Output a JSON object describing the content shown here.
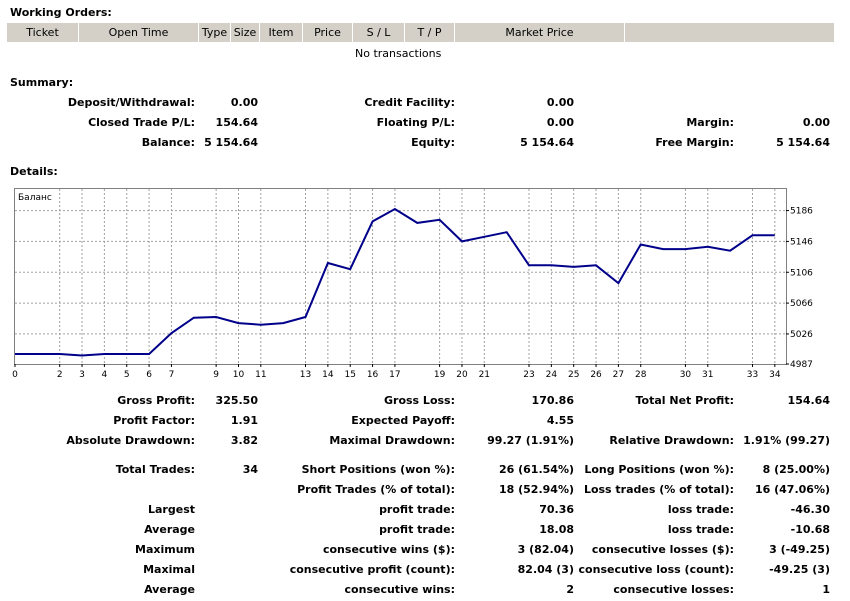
{
  "working_orders": {
    "title": "Working Orders:",
    "columns": [
      "Ticket",
      "Open Time",
      "Type",
      "Size",
      "Item",
      "Price",
      "S / L",
      "T / P",
      "Market Price",
      ""
    ],
    "empty_text": "No transactions"
  },
  "summary": {
    "title": "Summary:",
    "deposit_withdrawal": {
      "label": "Deposit/Withdrawal:",
      "value": "0.00"
    },
    "credit_facility": {
      "label": "Credit Facility:",
      "value": "0.00"
    },
    "closed_trade_pl": {
      "label": "Closed Trade P/L:",
      "value": "154.64"
    },
    "floating_pl": {
      "label": "Floating P/L:",
      "value": "0.00"
    },
    "margin": {
      "label": "Margin:",
      "value": "0.00"
    },
    "balance": {
      "label": "Balance:",
      "value": "5 154.64"
    },
    "equity": {
      "label": "Equity:",
      "value": "5 154.64"
    },
    "free_margin": {
      "label": "Free Margin:",
      "value": "5 154.64"
    }
  },
  "details": {
    "title": "Details:",
    "gross_profit": {
      "label": "Gross Profit:",
      "value": "325.50"
    },
    "gross_loss": {
      "label": "Gross Loss:",
      "value": "170.86"
    },
    "total_net_profit": {
      "label": "Total Net Profit:",
      "value": "154.64"
    },
    "profit_factor": {
      "label": "Profit Factor:",
      "value": "1.91"
    },
    "expected_payoff": {
      "label": "Expected Payoff:",
      "value": "4.55"
    },
    "absolute_drawdown": {
      "label": "Absolute Drawdown:",
      "value": "3.82"
    },
    "maximal_drawdown": {
      "label": "Maximal Drawdown:",
      "value": "99.27 (1.91%)"
    },
    "relative_drawdown": {
      "label": "Relative Drawdown:",
      "value": "1.91% (99.27)"
    },
    "total_trades": {
      "label": "Total Trades:",
      "value": "34"
    },
    "short_positions": {
      "label": "Short Positions (won %):",
      "value": "26 (61.54%)"
    },
    "long_positions": {
      "label": "Long Positions (won %):",
      "value": "8 (25.00%)"
    },
    "profit_trades": {
      "label": "Profit Trades (% of total):",
      "value": "18 (52.94%)"
    },
    "loss_trades": {
      "label": "Loss trades (% of total):",
      "value": "16 (47.06%)"
    },
    "largest": {
      "label": "Largest",
      "profit_label": "profit trade:",
      "profit_value": "70.36",
      "loss_label": "loss trade:",
      "loss_value": "-46.30"
    },
    "average": {
      "label": "Average",
      "profit_label": "profit trade:",
      "profit_value": "18.08",
      "loss_label": "loss trade:",
      "loss_value": "-10.68"
    },
    "maximum": {
      "label": "Maximum",
      "profit_label": "consecutive wins ($):",
      "profit_value": "3 (82.04)",
      "loss_label": "consecutive losses ($):",
      "loss_value": "3 (-49.25)"
    },
    "maximal": {
      "label": "Maximal",
      "profit_label": "consecutive profit (count):",
      "profit_value": "82.04 (3)",
      "loss_label": "consecutive loss (count):",
      "loss_value": "-49.25 (3)"
    },
    "average_consecutive": {
      "label": "Average",
      "profit_label": "consecutive wins:",
      "profit_value": "2",
      "loss_label": "consecutive losses:",
      "loss_value": "1"
    }
  },
  "colors": {
    "header_bg": "#d4d0c8",
    "line": "#00008b",
    "grid": "#a0a0a0"
  },
  "chart_data": {
    "type": "line",
    "title": "Баланс",
    "xlabel": "",
    "ylabel": "",
    "xlim": [
      0,
      34.5
    ],
    "ylim": [
      4987,
      5214
    ],
    "x_ticks": [
      0,
      2,
      3,
      4,
      5,
      6,
      7,
      9,
      10,
      11,
      13,
      14,
      15,
      16,
      17,
      19,
      20,
      21,
      23,
      24,
      25,
      26,
      27,
      28,
      30,
      31,
      33,
      34
    ],
    "y_ticks": [
      4987,
      5026,
      5066,
      5106,
      5146,
      5186
    ],
    "grid": true,
    "series": [
      {
        "x": [
          0,
          1,
          2,
          3,
          4,
          5,
          6,
          7,
          8,
          9,
          10,
          11,
          12,
          13,
          14,
          15,
          16,
          17,
          18,
          19,
          20,
          21,
          22,
          23,
          24,
          25,
          26,
          27,
          28,
          29,
          30,
          31,
          32,
          33,
          34
        ],
        "y": [
          5000,
          5000,
          5000,
          4998,
          5000,
          5000,
          5000,
          5027,
          5047,
          5048,
          5040,
          5038,
          5040,
          5048,
          5118,
          5110,
          5172,
          5188,
          5170,
          5174,
          5146,
          5152,
          5158,
          5115,
          5115,
          5113,
          5115,
          5092,
          5142,
          5136,
          5136,
          5139,
          5134,
          5154,
          5154
        ]
      }
    ]
  }
}
